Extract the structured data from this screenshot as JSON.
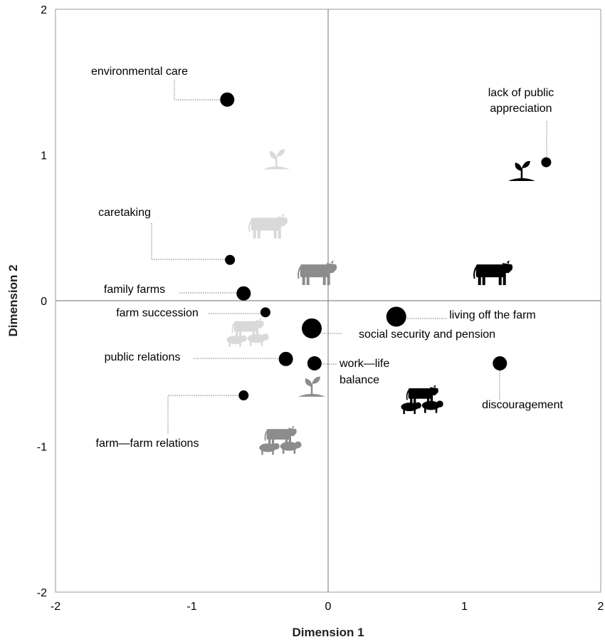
{
  "chart_data": {
    "type": "scatter",
    "xlabel": "Dimension 1",
    "ylabel": "Dimension 2",
    "xlim": [
      -2,
      2
    ],
    "ylim": [
      -2,
      2
    ],
    "xticks": [
      "-2",
      "-1",
      "0",
      "1",
      "2"
    ],
    "yticks": [
      "-2",
      "-1",
      "0",
      "1",
      "2"
    ],
    "grid": false,
    "reference_lines": {
      "x": 0,
      "y": 0
    },
    "points": [
      {
        "label": "environmental care",
        "x": -0.74,
        "y": 1.38,
        "size": "medium"
      },
      {
        "label": "lack of public appreciation",
        "x": 1.6,
        "y": 0.95,
        "size": "small"
      },
      {
        "label": "caretaking",
        "x": -0.72,
        "y": 0.28,
        "size": "small"
      },
      {
        "label": "family farms",
        "x": -0.62,
        "y": 0.05,
        "size": "medium"
      },
      {
        "label": "farm succession",
        "x": -0.46,
        "y": -0.08,
        "size": "small"
      },
      {
        "label": "living off the farm",
        "x": 0.5,
        "y": -0.11,
        "size": "large"
      },
      {
        "label": "social security and pension",
        "x": -0.12,
        "y": -0.19,
        "size": "large"
      },
      {
        "label": "public relations",
        "x": -0.31,
        "y": -0.4,
        "size": "medium"
      },
      {
        "label": "work—life balance",
        "x": -0.1,
        "y": -0.43,
        "size": "medium"
      },
      {
        "label": "discouragement",
        "x": 1.26,
        "y": -0.43,
        "size": "medium"
      },
      {
        "label": "farm—farm relations",
        "x": -0.62,
        "y": -0.65,
        "size": "small"
      }
    ],
    "category_icons": [
      {
        "icon": "plant-icon",
        "x": -0.38,
        "y": 0.96,
        "shade": "#d9d9d9"
      },
      {
        "icon": "cow-icon",
        "x": -0.44,
        "y": 0.52,
        "shade": "#d9d9d9"
      },
      {
        "icon": "cow-icon",
        "x": -0.08,
        "y": 0.2,
        "shade": "#8c8c8c"
      },
      {
        "icon": "cow-icon",
        "x": 1.21,
        "y": 0.2,
        "shade": "#000000"
      },
      {
        "icon": "plant-icon",
        "x": 1.42,
        "y": 0.88,
        "shade": "#000000"
      },
      {
        "icon": "mixed-livestock-icon",
        "x": -0.62,
        "y": -0.22,
        "shade": "#d9d9d9"
      },
      {
        "icon": "mixed-livestock-icon",
        "x": 0.66,
        "y": -0.68,
        "shade": "#000000"
      },
      {
        "icon": "mixed-livestock-icon",
        "x": -0.38,
        "y": -0.96,
        "shade": "#8c8c8c"
      },
      {
        "icon": "plant-icon",
        "x": -0.12,
        "y": -0.6,
        "shade": "#8c8c8c"
      }
    ]
  }
}
